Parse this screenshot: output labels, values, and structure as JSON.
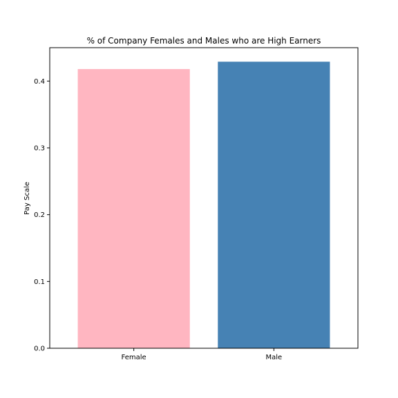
{
  "chart_data": {
    "type": "bar",
    "title": "% of Company Females and Males who are High Earners",
    "xlabel": "",
    "ylabel": "Pay Scale",
    "categories": [
      "Female",
      "Male"
    ],
    "values": [
      0.418,
      0.429
    ],
    "colors": [
      "#ffb6c1",
      "#4682b4"
    ],
    "ylim": [
      0,
      0.45
    ],
    "yticks": [
      0.0,
      0.1,
      0.2,
      0.3,
      0.4
    ],
    "ytick_labels": [
      "0.0",
      "0.1",
      "0.2",
      "0.3",
      "0.4"
    ],
    "grid": false,
    "legend": "none"
  }
}
